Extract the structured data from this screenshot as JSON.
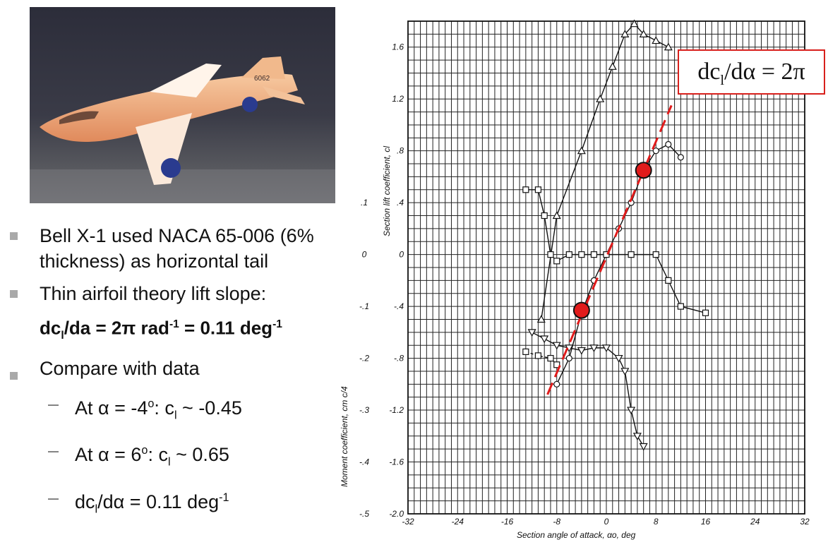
{
  "bullets": {
    "item1": "Bell X-1 used NACA 65-006 (6% thickness) as horizontal tail",
    "item2": "Thin airfoil theory lift slope:",
    "formula": {
      "p1": "dc",
      "s1": "l",
      "p2": "/da = 2π rad",
      "s2": "-1",
      "p3": " = 0.11 deg",
      "s3": "-1"
    },
    "item3": "Compare with data",
    "sub1": {
      "dash": "–",
      "p1": "At α = -4",
      "s1": "o",
      "p2": ": c",
      "s2": "l",
      "p3": " ~ -0.45"
    },
    "sub2": {
      "dash": "–",
      "p1": "At α = 6",
      "s1": "o",
      "p2": ": c",
      "s2": "l",
      "p3": " ~ 0.65"
    },
    "sub3": {
      "dash": "–",
      "p1": "dc",
      "s1": "l",
      "p2": "/dα = 0.11 deg",
      "s2": "-1"
    }
  },
  "photo": {
    "tail_number": "6062"
  },
  "callout": {
    "p1": "dc",
    "s1": "l",
    "p2": "/dα = 2π"
  },
  "chart_data": {
    "type": "line",
    "xlabel": "Section angle of attack, αo, deg",
    "ylabel": "Section lift coefficient, cl",
    "y2label": "Moment coefficient, cm c/4",
    "xlim": [
      -32,
      32
    ],
    "ylim": [
      -2.0,
      1.8
    ],
    "x_ticks": [
      -32,
      -24,
      -16,
      -8,
      0,
      8,
      16,
      24,
      32
    ],
    "y_ticks": [
      -2.0,
      -1.6,
      -1.2,
      -0.8,
      -0.4,
      0,
      0.4,
      0.8,
      1.2,
      1.6
    ],
    "y_tick_labels": [
      "-2.0",
      "-1.6",
      "-1.2",
      "-.8",
      "-.4",
      "0",
      ".4",
      ".8",
      "1.2",
      "1.6"
    ],
    "y2_ticks": [
      -0.5,
      -0.4,
      -0.3,
      -0.2,
      -0.1,
      0,
      0.1
    ],
    "y2_tick_labels": [
      "-.5",
      "-.4",
      "-.3",
      "-.2",
      "-.1",
      "0",
      ".1"
    ],
    "grid": true,
    "series": [
      {
        "marker": "triangle",
        "x": [
          -10.5,
          -8,
          -4,
          -1,
          1,
          3,
          4.5,
          6,
          8,
          10
        ],
        "y": [
          -0.5,
          0.3,
          0.8,
          1.2,
          1.45,
          1.7,
          1.78,
          1.7,
          1.65,
          1.6
        ]
      },
      {
        "marker": "circle",
        "x": [
          -8,
          -6,
          -4,
          -2,
          0,
          2,
          4,
          6,
          8,
          10,
          12
        ],
        "y": [
          -1.0,
          -0.8,
          -0.45,
          -0.2,
          0.0,
          0.2,
          0.4,
          0.65,
          0.8,
          0.85,
          0.75
        ]
      },
      {
        "marker": "square",
        "x": [
          -13,
          -11,
          -10,
          -9,
          -8,
          -6,
          -4,
          -2,
          0,
          4,
          8,
          10,
          12,
          16
        ],
        "y": [
          0.5,
          0.5,
          0.3,
          0.0,
          -0.05,
          0.0,
          0.0,
          0.0,
          0.0,
          0.0,
          0.0,
          -0.2,
          -0.4,
          -0.45
        ]
      },
      {
        "marker": "inverted-triangle",
        "x": [
          -12,
          -10,
          -8,
          -6,
          -4,
          -2,
          0,
          2,
          3,
          4,
          5,
          6
        ],
        "y": [
          -0.6,
          -0.65,
          -0.7,
          -0.72,
          -0.74,
          -0.72,
          -0.72,
          -0.8,
          -0.9,
          -1.2,
          -1.4,
          -1.48
        ]
      },
      {
        "marker": "square",
        "x": [
          -13,
          -11,
          -9,
          -8
        ],
        "y": [
          -0.75,
          -0.78,
          -0.8,
          -0.85
        ]
      }
    ],
    "theory_line": {
      "x": [
        -9.5,
        10.5
      ],
      "y": [
        -1.08,
        1.15
      ],
      "color": "#e11b1b"
    },
    "highlight_points": [
      {
        "x": -4,
        "y": -0.43,
        "color": "#e11b1b"
      },
      {
        "x": 6,
        "y": 0.65,
        "color": "#e11b1b"
      }
    ]
  }
}
